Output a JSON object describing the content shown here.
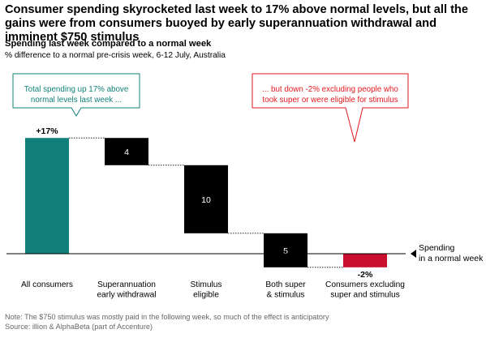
{
  "headline": "Consumer spending skyrocketed last week to 17% above normal levels, but all the gains were from consumers buoyed by early superannuation withdrawal and imminent $750 stimulus",
  "subtitle": "Spending last week compared to a normal week",
  "subnote": "% difference to a normal pre-crisis week, 6-12 July, Australia",
  "callouts": {
    "left": "Total spending up 17% above normal levels last week ...",
    "right": "... but down -2% excluding people who took super or were eligible for stimulus"
  },
  "baseline_label": "Spending in a normal week",
  "footer": {
    "note": "Note: The $750 stimulus was mostly paid in the following week, so much of the effect is anticipatory",
    "source": "Source: illion & AlphaBeta (part of Accenture)"
  },
  "colors": {
    "teal": "#12807a",
    "black": "#000000",
    "red": "#c8102e",
    "callout_red": "#e1191f"
  },
  "chart_data": {
    "type": "waterfall",
    "categories": [
      "All consumers",
      "Superannuation early withdrawal",
      "Stimulus eligible",
      "Both super & stimulus",
      "Consumers excluding super and stimulus"
    ],
    "category_lines": [
      [
        "All consumers"
      ],
      [
        "Superannuation",
        "early withdrawal"
      ],
      [
        "Stimulus",
        "eligible"
      ],
      [
        "Both super",
        "& stimulus"
      ],
      [
        "Consumers excluding",
        "super and stimulus"
      ]
    ],
    "values": [
      17,
      -4,
      -10,
      -5,
      -2
    ],
    "bar_kinds": [
      "total",
      "step",
      "step",
      "step",
      "total"
    ],
    "bar_colors": [
      "teal",
      "black",
      "black",
      "black",
      "red"
    ],
    "data_labels": [
      "+17%",
      "4",
      "10",
      "5",
      "-2%"
    ],
    "unit": "%",
    "ylim": [
      -2,
      17
    ]
  }
}
